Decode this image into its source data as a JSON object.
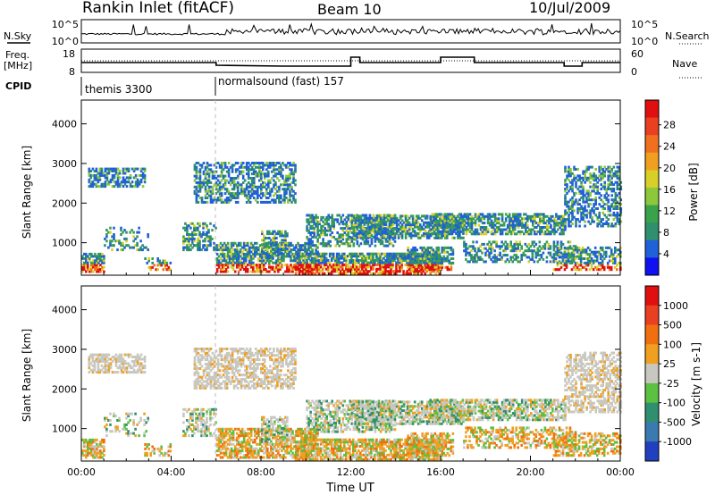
{
  "header": {
    "station": "Rankin Inlet (fitACF)",
    "beam": "Beam 10",
    "date": "10/Jul/2009"
  },
  "strip_panels": {
    "nsky_label": "N.Sky",
    "nsky_ticks": [
      "10^5",
      "10^0"
    ],
    "nsearch_label": "N.Search",
    "nsearch_ticks": [
      "10^5",
      "10^0"
    ],
    "freq_label": "Freq.",
    "freq_unit": "[MHz]",
    "freq_ticks": [
      "18",
      "8"
    ],
    "nave_label": "Nave",
    "nave_ticks": [
      "60",
      "0"
    ],
    "cpid_label": "CPID",
    "cpid_segments": [
      {
        "name": "themis 3300",
        "start_hour": 0
      },
      {
        "name": "normalsound (fast) 157",
        "start_hour": 6
      }
    ]
  },
  "chart_data": [
    {
      "type": "heatmap",
      "quantity": "Power",
      "xlabel": "Time UT",
      "ylabel": "Slant Range [km]",
      "x_ticks": [
        "00:00",
        "04:00",
        "08:00",
        "12:00",
        "16:00",
        "20:00",
        "00:00"
      ],
      "xlim_hours": [
        0,
        24
      ],
      "y_ticks": [
        1000,
        2000,
        3000,
        4000
      ],
      "ylim": [
        180,
        4600
      ],
      "colorbar": {
        "label": "Power [dB]",
        "tick_labels": [
          "4",
          "8",
          "12",
          "16",
          "20",
          "24",
          "28"
        ],
        "range": [
          0,
          30
        ],
        "colors": [
          "#1010f0",
          "#2060d8",
          "#2f8f6f",
          "#3aa24a",
          "#8cc83a",
          "#d8d028",
          "#f0a020",
          "#f07020",
          "#e84020",
          "#e01010"
        ]
      }
    },
    {
      "type": "heatmap",
      "quantity": "Velocity",
      "xlabel": "Time UT",
      "ylabel": "Slant Range [km]",
      "x_ticks": [
        "00:00",
        "04:00",
        "08:00",
        "12:00",
        "16:00",
        "20:00",
        "00:00"
      ],
      "xlim_hours": [
        0,
        24
      ],
      "y_ticks": [
        1000,
        2000,
        3000,
        4000
      ],
      "ylim": [
        180,
        4600
      ],
      "colorbar": {
        "label": "Velocity [m s-1]",
        "tick_labels": [
          "1000",
          "500",
          "100",
          "25",
          "-25",
          "-100",
          "-500",
          "-1000"
        ],
        "colors": [
          "#2040c0",
          "#3a7ab0",
          "#2f8f6f",
          "#5cc040",
          "#c8c8c0",
          "#f0a020",
          "#f07010",
          "#e84020",
          "#e01010"
        ]
      }
    }
  ]
}
